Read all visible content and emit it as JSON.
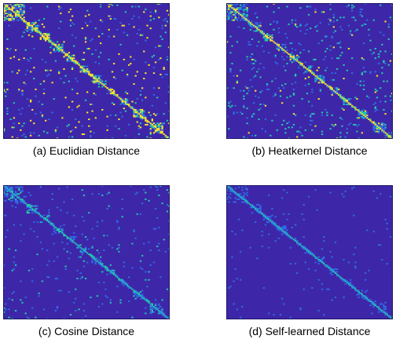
{
  "chart_data": [
    {
      "type": "heatmap",
      "title": "",
      "caption": "(a) Euclidian Distance",
      "xlabel": "",
      "ylabel": "",
      "colormap": "parula",
      "colors": {
        "background": "#3e26a8",
        "low": "#2f6be4",
        "mid": "#23c6b0",
        "high": "#f9e22a"
      },
      "structure": "symmetric block-diagonal similarity matrix; dense yellow blocks along the diagonal and scattered speckles",
      "density": 0.085,
      "intensity": "high"
    },
    {
      "type": "heatmap",
      "title": "",
      "caption": "(b) Heatkernel Distance",
      "xlabel": "",
      "ylabel": "",
      "colormap": "parula",
      "colors": {
        "background": "#3e26a8",
        "low": "#2f6be4",
        "mid": "#23c6b0",
        "high": "#f9e22a"
      },
      "structure": "symmetric block-diagonal similarity matrix; cyan/green blocks along the diagonal and scattered speckles",
      "density": 0.09,
      "intensity": "medium"
    },
    {
      "type": "heatmap",
      "title": "",
      "caption": "(c) Cosine Distance",
      "xlabel": "",
      "ylabel": "",
      "colormap": "parula",
      "colors": {
        "background": "#3e26a8",
        "low": "#2f6be4",
        "mid": "#23c6b0",
        "high": "#f9e22a"
      },
      "structure": "symmetric block-diagonal similarity matrix; mostly blue with faint diagonal blocks",
      "density": 0.06,
      "intensity": "low"
    },
    {
      "type": "heatmap",
      "title": "",
      "caption": "(d) Self-learned Distance",
      "xlabel": "",
      "ylabel": "",
      "colormap": "parula",
      "colors": {
        "background": "#3e26a8",
        "low": "#2f6be4",
        "mid": "#23c6b0",
        "high": "#f9e22a"
      },
      "structure": "symmetric block-diagonal similarity matrix; very sparse faint diagonal",
      "density": 0.03,
      "intensity": "very-low"
    }
  ]
}
